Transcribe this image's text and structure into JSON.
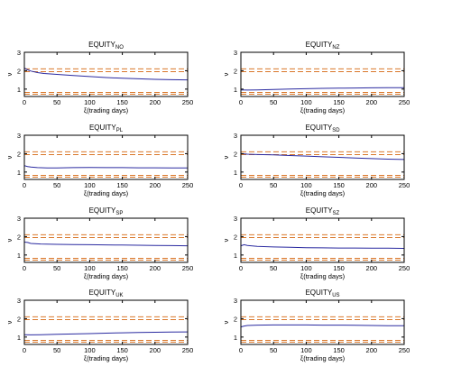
{
  "chart_data": [
    {
      "type": "line",
      "title_base": "EQUITY",
      "title_sub": "NO",
      "xlabel": "ξ(trading days)",
      "ylabel": "ν",
      "xlim": [
        0,
        250
      ],
      "ylim": [
        0.6,
        3
      ],
      "xticks": [
        0,
        50,
        100,
        150,
        200,
        250
      ],
      "yticks": [
        1,
        2,
        3
      ],
      "series": [
        {
          "x": [
            0,
            5,
            10,
            20,
            30,
            50,
            75,
            100,
            125,
            150,
            175,
            200,
            225,
            250
          ],
          "values": [
            2.15,
            2.05,
            1.98,
            1.9,
            1.85,
            1.8,
            1.74,
            1.68,
            1.63,
            1.59,
            1.56,
            1.53,
            1.51,
            1.5
          ]
        }
      ],
      "bands": [
        {
          "values": [
            1.95,
            2.1
          ],
          "color": "#d9772a"
        },
        {
          "values": [
            0.72,
            0.82
          ],
          "color": "#d9772a"
        }
      ]
    },
    {
      "type": "line",
      "title_base": "EQUITY",
      "title_sub": "NZ",
      "xlabel": "ξ(trading days)",
      "ylabel": "ν",
      "xlim": [
        0,
        250
      ],
      "ylim": [
        0.6,
        3
      ],
      "xticks": [
        0,
        50,
        100,
        150,
        200,
        250
      ],
      "yticks": [
        1,
        2,
        3
      ],
      "series": [
        {
          "x": [
            0,
            10,
            25,
            50,
            75,
            100,
            125,
            150,
            175,
            200,
            225,
            250
          ],
          "values": [
            0.96,
            0.95,
            0.96,
            0.98,
            1.0,
            1.02,
            1.04,
            1.05,
            1.06,
            1.07,
            1.08,
            1.08
          ]
        }
      ],
      "bands": [
        {
          "values": [
            1.95,
            2.1
          ],
          "color": "#d9772a"
        },
        {
          "values": [
            0.72,
            0.82
          ],
          "color": "#d9772a"
        }
      ]
    },
    {
      "type": "line",
      "title_base": "EQUITY",
      "title_sub": "PL",
      "xlabel": "ξ(trading days)",
      "ylabel": "ν",
      "xlim": [
        0,
        250
      ],
      "ylim": [
        0.6,
        3
      ],
      "xticks": [
        0,
        50,
        100,
        150,
        200,
        250
      ],
      "yticks": [
        1,
        2,
        3
      ],
      "series": [
        {
          "x": [
            0,
            5,
            10,
            20,
            35,
            50,
            75,
            100,
            125,
            150,
            175,
            200,
            225,
            250
          ],
          "values": [
            1.35,
            1.3,
            1.27,
            1.24,
            1.22,
            1.22,
            1.24,
            1.25,
            1.24,
            1.24,
            1.23,
            1.23,
            1.22,
            1.22
          ]
        }
      ],
      "bands": [
        {
          "values": [
            1.95,
            2.1
          ],
          "color": "#d9772a"
        },
        {
          "values": [
            0.72,
            0.82
          ],
          "color": "#d9772a"
        }
      ]
    },
    {
      "type": "line",
      "title_base": "EQUITY",
      "title_sub": "SD",
      "xlabel": "ξ(trading days)",
      "ylabel": "ν",
      "xlim": [
        0,
        250
      ],
      "ylim": [
        0.6,
        3
      ],
      "xticks": [
        0,
        50,
        100,
        150,
        200,
        250
      ],
      "yticks": [
        1,
        2,
        3
      ],
      "series": [
        {
          "x": [
            0,
            10,
            25,
            50,
            75,
            100,
            125,
            150,
            175,
            200,
            225,
            250
          ],
          "values": [
            2.0,
            1.97,
            1.95,
            1.93,
            1.9,
            1.87,
            1.83,
            1.8,
            1.76,
            1.73,
            1.7,
            1.68
          ]
        }
      ],
      "bands": [
        {
          "values": [
            1.95,
            2.1
          ],
          "color": "#d9772a"
        },
        {
          "values": [
            0.72,
            0.82
          ],
          "color": "#d9772a"
        }
      ]
    },
    {
      "type": "line",
      "title_base": "EQUITY",
      "title_sub": "SP",
      "xlabel": "ξ(trading days)",
      "ylabel": "ν",
      "xlim": [
        0,
        250
      ],
      "ylim": [
        0.6,
        3
      ],
      "xticks": [
        0,
        50,
        100,
        150,
        200,
        250
      ],
      "yticks": [
        1,
        2,
        3
      ],
      "series": [
        {
          "x": [
            0,
            5,
            10,
            25,
            50,
            75,
            100,
            125,
            150,
            175,
            200,
            225,
            250
          ],
          "values": [
            1.7,
            1.68,
            1.63,
            1.6,
            1.58,
            1.57,
            1.56,
            1.55,
            1.54,
            1.53,
            1.52,
            1.51,
            1.5
          ]
        }
      ],
      "bands": [
        {
          "values": [
            1.95,
            2.1
          ],
          "color": "#d9772a"
        },
        {
          "values": [
            0.72,
            0.82
          ],
          "color": "#d9772a"
        }
      ]
    },
    {
      "type": "line",
      "title_base": "EQUITY",
      "title_sub": "SZ",
      "xlabel": "ξ(trading days)",
      "ylabel": "ν",
      "xlim": [
        0,
        250
      ],
      "ylim": [
        0.6,
        3
      ],
      "xticks": [
        0,
        50,
        100,
        150,
        200,
        250
      ],
      "yticks": [
        1,
        2,
        3
      ],
      "series": [
        {
          "x": [
            0,
            5,
            10,
            25,
            50,
            75,
            100,
            125,
            150,
            175,
            200,
            225,
            250
          ],
          "values": [
            1.5,
            1.56,
            1.52,
            1.47,
            1.44,
            1.42,
            1.4,
            1.39,
            1.38,
            1.38,
            1.37,
            1.37,
            1.36
          ]
        }
      ],
      "bands": [
        {
          "values": [
            1.95,
            2.1
          ],
          "color": "#d9772a"
        },
        {
          "values": [
            0.72,
            0.82
          ],
          "color": "#d9772a"
        }
      ]
    },
    {
      "type": "line",
      "title_base": "EQUITY",
      "title_sub": "UK",
      "xlabel": "ξ(trading days)",
      "ylabel": "ν",
      "xlim": [
        0,
        250
      ],
      "ylim": [
        0.6,
        3
      ],
      "xticks": [
        0,
        50,
        100,
        150,
        200,
        250
      ],
      "yticks": [
        1,
        2,
        3
      ],
      "series": [
        {
          "x": [
            0,
            10,
            25,
            50,
            75,
            100,
            125,
            150,
            175,
            200,
            225,
            250
          ],
          "values": [
            1.13,
            1.12,
            1.13,
            1.15,
            1.17,
            1.19,
            1.21,
            1.23,
            1.25,
            1.26,
            1.27,
            1.28
          ]
        }
      ],
      "bands": [
        {
          "values": [
            1.95,
            2.1
          ],
          "color": "#d9772a"
        },
        {
          "values": [
            0.72,
            0.82
          ],
          "color": "#d9772a"
        }
      ]
    },
    {
      "type": "line",
      "title_base": "EQUITY",
      "title_sub": "US",
      "xlabel": "ξ(trading days)",
      "ylabel": "ν",
      "xlim": [
        0,
        250
      ],
      "ylim": [
        0.6,
        3
      ],
      "xticks": [
        0,
        50,
        100,
        150,
        200,
        250
      ],
      "yticks": [
        1,
        2,
        3
      ],
      "series": [
        {
          "x": [
            0,
            5,
            10,
            25,
            50,
            75,
            100,
            125,
            150,
            175,
            200,
            225,
            250
          ],
          "values": [
            1.55,
            1.6,
            1.63,
            1.65,
            1.66,
            1.66,
            1.66,
            1.65,
            1.65,
            1.64,
            1.63,
            1.62,
            1.62
          ]
        }
      ],
      "bands": [
        {
          "values": [
            1.95,
            2.1
          ],
          "color": "#d9772a"
        },
        {
          "values": [
            0.72,
            0.82
          ],
          "color": "#d9772a"
        }
      ]
    }
  ],
  "colors": {
    "series": "#2a2aa0",
    "band": "#d9772a",
    "axis": "#000000"
  }
}
